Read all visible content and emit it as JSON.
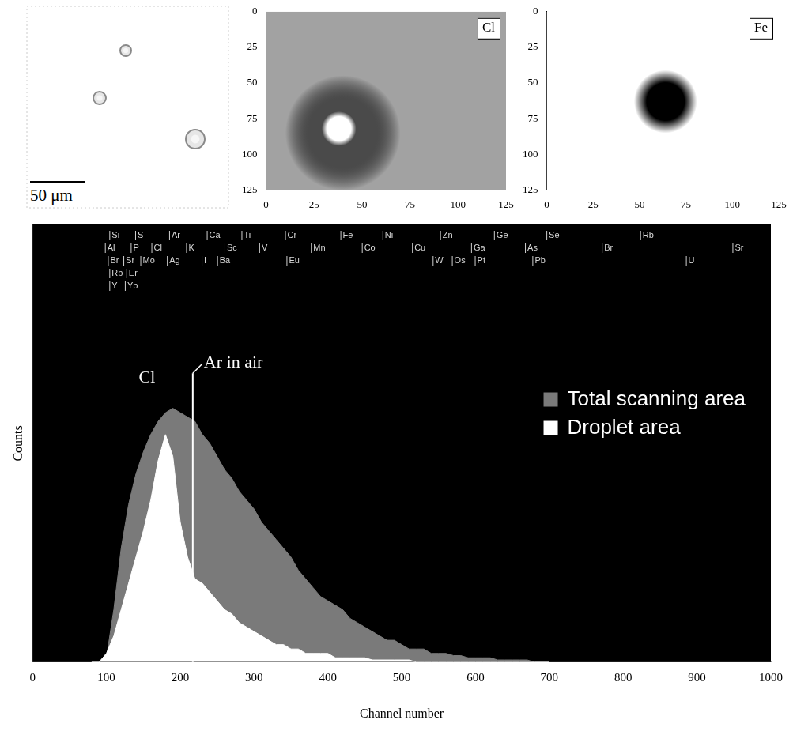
{
  "chart_data": [
    {
      "type": "image",
      "scale_bar": "50 μm"
    },
    {
      "type": "map",
      "label": "Cl",
      "color": "#a2a2a2",
      "xlim": [
        0,
        125
      ],
      "xticks": [
        0,
        25,
        50,
        75,
        100,
        125
      ],
      "ylim": [
        0,
        125
      ],
      "yticks": [
        0,
        25,
        50,
        75,
        100,
        125
      ],
      "spots": [
        {
          "x": 40,
          "y": 85,
          "radius": 30,
          "color": "#4a4a4a"
        },
        {
          "x": 38,
          "y": 82,
          "radius": 9,
          "color": "#ffffff"
        }
      ]
    },
    {
      "type": "map",
      "label": "Fe",
      "color": "#ffffff",
      "xlim": [
        0,
        125
      ],
      "xticks": [
        0,
        25,
        50,
        75,
        100,
        125
      ],
      "ylim": [
        0,
        125
      ],
      "yticks": [
        0,
        25,
        50,
        75,
        100,
        125
      ],
      "spots": [
        {
          "x": 64,
          "y": 63,
          "radius": 17,
          "color": "#000000"
        }
      ]
    },
    {
      "type": "area",
      "x_label": "Channel number",
      "y_label": "Counts",
      "xlim": [
        0,
        1000
      ],
      "xticks": [
        0,
        100,
        200,
        300,
        400,
        500,
        600,
        700,
        800,
        900,
        1000
      ],
      "ylim": [
        0,
        100
      ],
      "tick_labels": "x",
      "grid": false,
      "legend": "upper right",
      "x": [
        80,
        90,
        100,
        110,
        120,
        130,
        140,
        150,
        160,
        170,
        180,
        190,
        200,
        210,
        220,
        230,
        240,
        250,
        260,
        270,
        280,
        290,
        300,
        310,
        320,
        330,
        340,
        350,
        360,
        370,
        380,
        390,
        400,
        410,
        420,
        430,
        440,
        450,
        460,
        470,
        480,
        490,
        500,
        510,
        520,
        530,
        540,
        550,
        560,
        570,
        580,
        590,
        600,
        610,
        620,
        630,
        640,
        650,
        660,
        670,
        680,
        690,
        700
      ],
      "series": [
        {
          "name": "Total scanning area",
          "color": "#7a7a7a",
          "values": [
            0,
            0,
            1,
            12,
            26,
            36,
            43,
            48,
            52,
            55,
            57,
            58,
            57,
            56,
            55,
            52,
            50,
            47,
            44,
            42,
            39,
            37,
            35,
            32,
            30,
            28,
            26,
            24,
            21,
            19,
            17,
            15,
            14,
            13,
            12,
            10,
            9,
            8,
            7,
            6,
            5,
            5,
            4,
            3,
            3,
            3,
            2,
            2,
            2,
            1.5,
            1.5,
            1,
            1,
            1,
            1,
            0.5,
            0.5,
            0.5,
            0.5,
            0.5,
            0,
            0,
            0
          ]
        },
        {
          "name": "Droplet area",
          "color": "#ffffff",
          "values": [
            0,
            0,
            2,
            6,
            12,
            18,
            24,
            30,
            37,
            46,
            52,
            47,
            32,
            24,
            19,
            18,
            16,
            14,
            12,
            11,
            9,
            8,
            7,
            6,
            5,
            4,
            4,
            3,
            3,
            2,
            2,
            2,
            2,
            1,
            1,
            1,
            1,
            1,
            0.5,
            0.5,
            0.5,
            0.5,
            0.5,
            0.5,
            0,
            0,
            0,
            0,
            0,
            0,
            0,
            0,
            0,
            0,
            0,
            0,
            0,
            0,
            0,
            0,
            0,
            0,
            0
          ]
        }
      ],
      "annotations": [
        {
          "text": "Cl",
          "x": 155,
          "y": 63
        },
        {
          "text": "Ar in air",
          "x": 217,
          "y": 66
        }
      ],
      "element_labels": [
        [
          {
            "label": "Si",
            "x": 104
          },
          {
            "label": "S",
            "x": 139
          },
          {
            "label": "Ar",
            "x": 185
          },
          {
            "label": "Ca",
            "x": 236
          },
          {
            "label": "Ti",
            "x": 283
          },
          {
            "label": "Cr",
            "x": 342
          },
          {
            "label": "Fe",
            "x": 417
          },
          {
            "label": "Ni",
            "x": 474
          },
          {
            "label": "Zn",
            "x": 552
          },
          {
            "label": "Ge",
            "x": 625
          },
          {
            "label": "Se",
            "x": 696
          },
          {
            "label": "Rb",
            "x": 823
          }
        ],
        [
          {
            "label": "Al",
            "x": 98
          },
          {
            "label": "P",
            "x": 133
          },
          {
            "label": "Cl",
            "x": 161
          },
          {
            "label": "K",
            "x": 208
          },
          {
            "label": "Sc",
            "x": 260
          },
          {
            "label": "V",
            "x": 307
          },
          {
            "label": "Mn",
            "x": 377
          },
          {
            "label": "Co",
            "x": 446
          },
          {
            "label": "Cu",
            "x": 514
          },
          {
            "label": "Ga",
            "x": 594
          },
          {
            "label": "As",
            "x": 667
          },
          {
            "label": "Br",
            "x": 771
          },
          {
            "label": "Sr",
            "x": 948
          }
        ],
        [
          {
            "label": "Br",
            "x": 102
          },
          {
            "label": "Sr",
            "x": 123
          },
          {
            "label": "Mo",
            "x": 146
          },
          {
            "label": "Ag",
            "x": 182
          },
          {
            "label": "I",
            "x": 229
          },
          {
            "label": "Ba",
            "x": 250
          },
          {
            "label": "Eu",
            "x": 344
          },
          {
            "label": "W",
            "x": 542
          },
          {
            "label": "Os",
            "x": 568
          },
          {
            "label": "Pt",
            "x": 599
          },
          {
            "label": "Pb",
            "x": 677
          },
          {
            "label": "U",
            "x": 885
          }
        ],
        [
          {
            "label": "Rb",
            "x": 104
          },
          {
            "label": "Er",
            "x": 127
          }
        ],
        [
          {
            "label": "Y",
            "x": 104
          },
          {
            "label": "Yb",
            "x": 125
          }
        ]
      ]
    }
  ]
}
